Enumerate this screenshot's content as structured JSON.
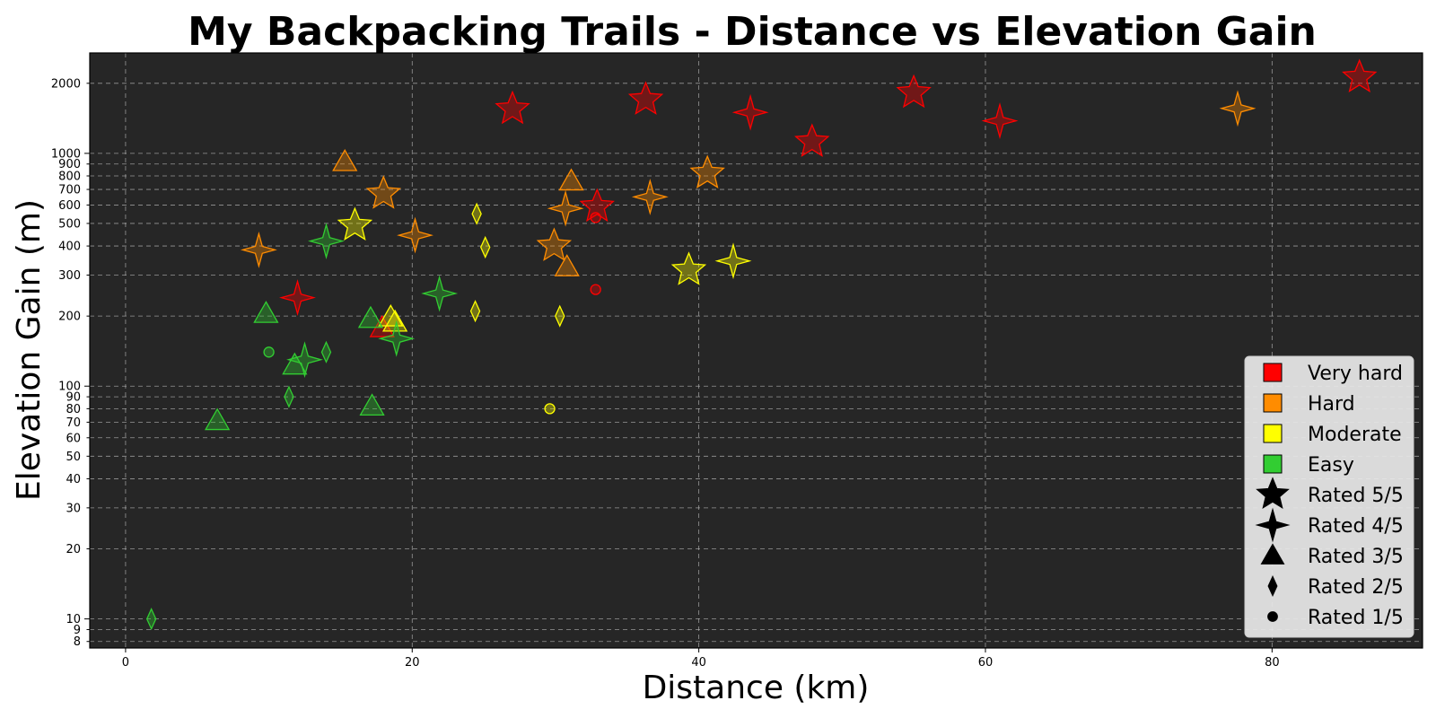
{
  "chart_data": {
    "type": "scatter",
    "title": "My Backpacking Trails - Distance vs Elevation Gain",
    "xlabel": "Distance (km)",
    "ylabel": "Elevation Gain (m)",
    "xlim": [
      -2.5,
      90.5
    ],
    "ylim": [
      7.5,
      2700
    ],
    "y_scale": "log",
    "grid": true,
    "legend_position": "lower-right",
    "background": "#262626",
    "x_ticks": [
      0,
      20,
      40,
      60,
      80
    ],
    "y_ticks": [
      8,
      9,
      10,
      20,
      30,
      40,
      50,
      60,
      70,
      80,
      90,
      100,
      200,
      300,
      400,
      500,
      600,
      700,
      800,
      900,
      1000,
      2000
    ],
    "difficulty_colors": {
      "Very hard": "#ff0000",
      "Hard": "#ff8c00",
      "Moderate": "#ffff00",
      "Easy": "#32cd32"
    },
    "legend": {
      "colors": [
        {
          "label": "Very hard",
          "color": "#ff0000"
        },
        {
          "label": "Hard",
          "color": "#ff8c00"
        },
        {
          "label": "Moderate",
          "color": "#ffff00"
        },
        {
          "label": "Easy",
          "color": "#32cd32"
        }
      ],
      "shapes": [
        {
          "label": "Rated 5/5",
          "rating": 5
        },
        {
          "label": "Rated 4/5",
          "rating": 4
        },
        {
          "label": "Rated 3/5",
          "rating": 3
        },
        {
          "label": "Rated 2/5",
          "rating": 2
        },
        {
          "label": "Rated 1/5",
          "rating": 1
        }
      ]
    },
    "points": [
      {
        "x": 27.0,
        "y": 1550,
        "difficulty": "Very hard",
        "rating": 5
      },
      {
        "x": 36.3,
        "y": 1700,
        "difficulty": "Very hard",
        "rating": 5
      },
      {
        "x": 43.6,
        "y": 1500,
        "difficulty": "Very hard",
        "rating": 4
      },
      {
        "x": 47.9,
        "y": 1120,
        "difficulty": "Very hard",
        "rating": 5
      },
      {
        "x": 55.0,
        "y": 1820,
        "difficulty": "Very hard",
        "rating": 5
      },
      {
        "x": 61.0,
        "y": 1380,
        "difficulty": "Very hard",
        "rating": 4
      },
      {
        "x": 86.1,
        "y": 2120,
        "difficulty": "Very hard",
        "rating": 5
      },
      {
        "x": 32.9,
        "y": 590,
        "difficulty": "Very hard",
        "rating": 5
      },
      {
        "x": 12.0,
        "y": 240,
        "difficulty": "Very hard",
        "rating": 4
      },
      {
        "x": 32.8,
        "y": 530,
        "difficulty": "Very hard",
        "rating": 1
      },
      {
        "x": 32.8,
        "y": 260,
        "difficulty": "Very hard",
        "rating": 1
      },
      {
        "x": 17.9,
        "y": 178,
        "difficulty": "Very hard",
        "rating": 3
      },
      {
        "x": 77.6,
        "y": 1560,
        "difficulty": "Hard",
        "rating": 4
      },
      {
        "x": 15.3,
        "y": 920,
        "difficulty": "Hard",
        "rating": 3
      },
      {
        "x": 18.0,
        "y": 670,
        "difficulty": "Hard",
        "rating": 5
      },
      {
        "x": 9.3,
        "y": 385,
        "difficulty": "Hard",
        "rating": 4
      },
      {
        "x": 20.2,
        "y": 445,
        "difficulty": "Hard",
        "rating": 4
      },
      {
        "x": 31.1,
        "y": 760,
        "difficulty": "Hard",
        "rating": 3
      },
      {
        "x": 30.7,
        "y": 580,
        "difficulty": "Hard",
        "rating": 4
      },
      {
        "x": 29.9,
        "y": 400,
        "difficulty": "Hard",
        "rating": 5
      },
      {
        "x": 30.8,
        "y": 325,
        "difficulty": "Hard",
        "rating": 3
      },
      {
        "x": 36.6,
        "y": 650,
        "difficulty": "Hard",
        "rating": 4
      },
      {
        "x": 40.6,
        "y": 820,
        "difficulty": "Hard",
        "rating": 5
      },
      {
        "x": 16.0,
        "y": 490,
        "difficulty": "Moderate",
        "rating": 5
      },
      {
        "x": 24.5,
        "y": 550,
        "difficulty": "Moderate",
        "rating": 2
      },
      {
        "x": 25.1,
        "y": 395,
        "difficulty": "Moderate",
        "rating": 2
      },
      {
        "x": 24.4,
        "y": 210,
        "difficulty": "Moderate",
        "rating": 2
      },
      {
        "x": 30.3,
        "y": 200,
        "difficulty": "Moderate",
        "rating": 2
      },
      {
        "x": 39.3,
        "y": 315,
        "difficulty": "Moderate",
        "rating": 5
      },
      {
        "x": 42.4,
        "y": 345,
        "difficulty": "Moderate",
        "rating": 4
      },
      {
        "x": 18.5,
        "y": 198,
        "difficulty": "Moderate",
        "rating": 3
      },
      {
        "x": 18.8,
        "y": 188,
        "difficulty": "Moderate",
        "rating": 3
      },
      {
        "x": 29.6,
        "y": 80,
        "difficulty": "Moderate",
        "rating": 1
      },
      {
        "x": 14.0,
        "y": 420,
        "difficulty": "Easy",
        "rating": 4
      },
      {
        "x": 21.9,
        "y": 250,
        "difficulty": "Easy",
        "rating": 4
      },
      {
        "x": 9.8,
        "y": 205,
        "difficulty": "Easy",
        "rating": 3
      },
      {
        "x": 17.1,
        "y": 195,
        "difficulty": "Easy",
        "rating": 3
      },
      {
        "x": 18.9,
        "y": 160,
        "difficulty": "Easy",
        "rating": 4
      },
      {
        "x": 10.0,
        "y": 140,
        "difficulty": "Easy",
        "rating": 1
      },
      {
        "x": 14.0,
        "y": 140,
        "difficulty": "Easy",
        "rating": 2
      },
      {
        "x": 12.5,
        "y": 130,
        "difficulty": "Easy",
        "rating": 4
      },
      {
        "x": 11.8,
        "y": 123,
        "difficulty": "Easy",
        "rating": 3
      },
      {
        "x": 11.4,
        "y": 90,
        "difficulty": "Easy",
        "rating": 2
      },
      {
        "x": 17.2,
        "y": 82,
        "difficulty": "Easy",
        "rating": 3
      },
      {
        "x": 6.4,
        "y": 71,
        "difficulty": "Easy",
        "rating": 3
      },
      {
        "x": 1.8,
        "y": 10,
        "difficulty": "Easy",
        "rating": 2
      }
    ]
  }
}
